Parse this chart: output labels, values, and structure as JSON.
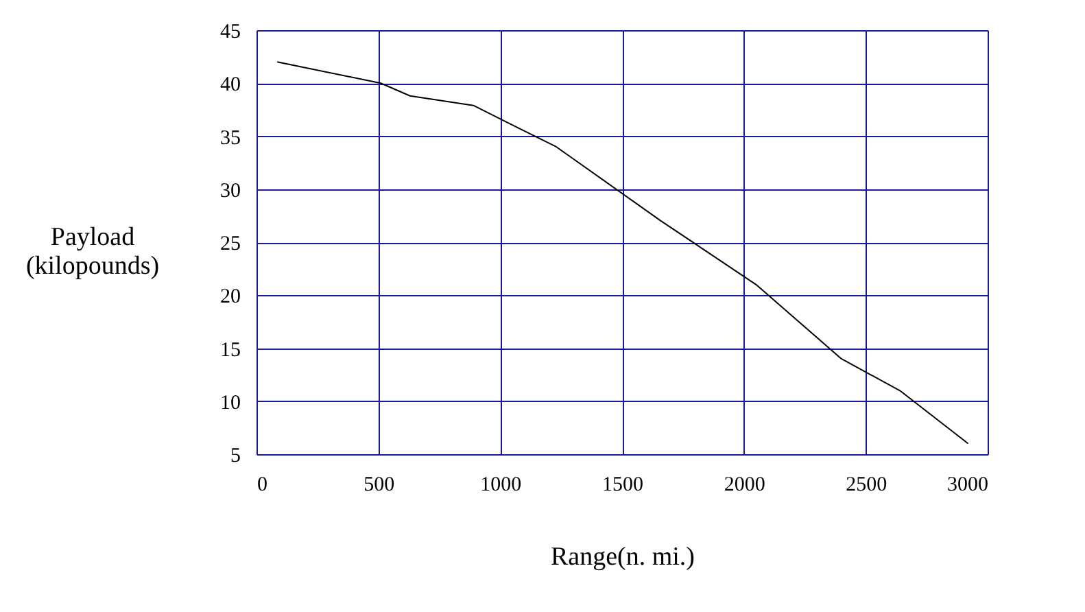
{
  "chart_data": {
    "type": "line",
    "xlabel": "Range(n. mi.)",
    "ylabel": "Payload (kilopounds)",
    "x": [
      85,
      510,
      630,
      890,
      1020,
      1230,
      1660,
      2050,
      2400,
      2640,
      2920
    ],
    "values": [
      42,
      40,
      38.8,
      37.9,
      36.4,
      34,
      27,
      21,
      14,
      11,
      6
    ],
    "color": "#000000",
    "grid": true,
    "xlim": [
      0,
      3000
    ],
    "xticks": [
      0,
      500,
      1000,
      1500,
      2000,
      2500,
      3000
    ],
    "ylim": [
      5,
      45
    ],
    "yticks": [
      5,
      10,
      15,
      20,
      25,
      30,
      35,
      40,
      45
    ],
    "marker": "none",
    "line_style": "solid"
  }
}
